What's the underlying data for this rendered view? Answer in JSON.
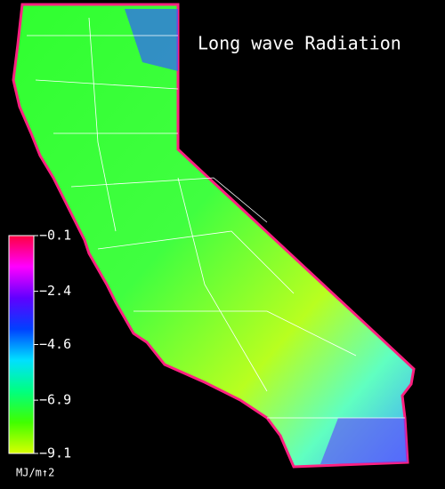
{
  "title": "Long wave Radiation",
  "legend": {
    "range": [
      -9.1,
      -0.1
    ],
    "ticks": [
      {
        "value": -0.1,
        "label": "−0.1"
      },
      {
        "value": -2.4,
        "label": "−2.4"
      },
      {
        "value": -4.6,
        "label": "−4.6"
      },
      {
        "value": -6.9,
        "label": "−6.9"
      },
      {
        "value": -9.1,
        "label": "−9.1"
      }
    ],
    "colors": [
      "#ff0040",
      "#ff00ff",
      "#6000ff",
      "#0040ff",
      "#00e0ff",
      "#00ff80",
      "#40ff00",
      "#d8ff00"
    ],
    "unit": "MJ/m↑2"
  }
}
